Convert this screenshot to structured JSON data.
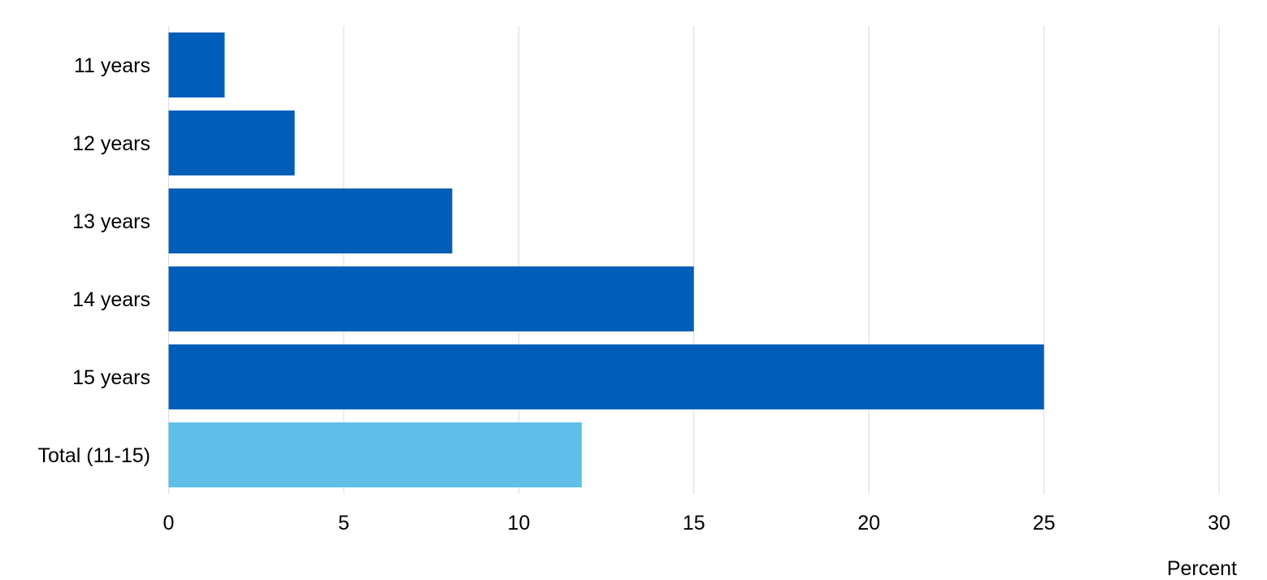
{
  "chart_data": {
    "type": "bar",
    "orientation": "horizontal",
    "categories": [
      "11 years",
      "12 years",
      "13 years",
      "14 years",
      "15 years",
      "Total (11-15)"
    ],
    "values": [
      1.6,
      3.6,
      8.1,
      15.0,
      25.0,
      11.8
    ],
    "bar_colors": [
      "#005EB8",
      "#005EB8",
      "#005EB8",
      "#005EB8",
      "#005EB8",
      "#5FBFE8"
    ],
    "title": "",
    "xlabel": "Percent",
    "ylabel": "",
    "xlim": [
      0,
      30
    ],
    "xticks": [
      0,
      5,
      10,
      15,
      20,
      25,
      30
    ],
    "grid": true,
    "grid_axis": "x",
    "legend": "none"
  }
}
